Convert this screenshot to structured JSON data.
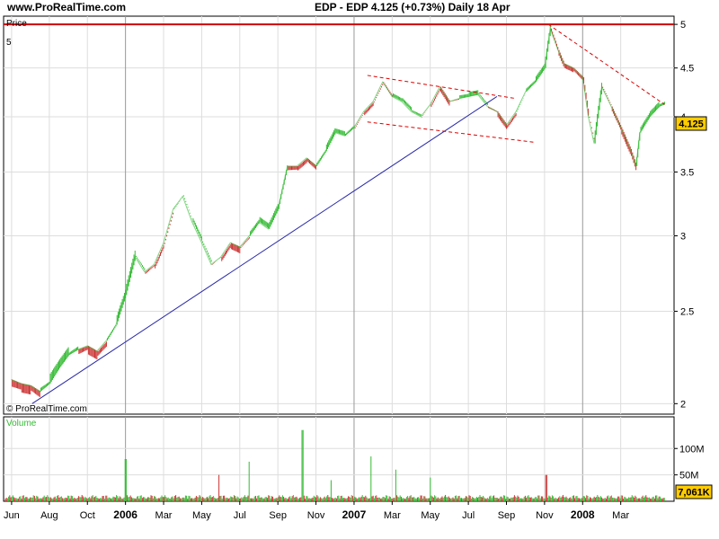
{
  "header": {
    "site": "www.ProRealTime.com",
    "title": "EDP - EDP    4.125 (+0.73%)    Daily   18 Apr"
  },
  "chart_data": [
    {
      "type": "line",
      "title": "EDP - EDP",
      "ylabel": "Price",
      "y_scale": "log",
      "ylim": [
        1.95,
        5.1
      ],
      "y_ticks": [
        {
          "value": 2,
          "label": "2"
        },
        {
          "value": 2.5,
          "label": "2.5"
        },
        {
          "value": 3,
          "label": "3"
        },
        {
          "value": 3.5,
          "label": "3.5"
        },
        {
          "value": 4,
          "label": "4"
        },
        {
          "value": 4.5,
          "label": "4.5"
        },
        {
          "value": 5,
          "label": "5"
        }
      ],
      "x_labels": [
        {
          "t": 0.02,
          "label": "Jun",
          "year": false
        },
        {
          "t": 2.0,
          "label": "Aug",
          "year": false
        },
        {
          "t": 4.0,
          "label": "Oct",
          "year": false
        },
        {
          "t": 6.0,
          "label": "2006",
          "year": true
        },
        {
          "t": 8.0,
          "label": "Mar",
          "year": false
        },
        {
          "t": 10.0,
          "label": "May",
          "year": false
        },
        {
          "t": 12.0,
          "label": "Jul",
          "year": false
        },
        {
          "t": 14.0,
          "label": "Sep",
          "year": false
        },
        {
          "t": 16.0,
          "label": "Nov",
          "year": false
        },
        {
          "t": 18.0,
          "label": "2007",
          "year": true
        },
        {
          "t": 20.0,
          "label": "Mar",
          "year": false
        },
        {
          "t": 22.0,
          "label": "May",
          "year": false
        },
        {
          "t": 24.0,
          "label": "Jul",
          "year": false
        },
        {
          "t": 26.0,
          "label": "Sep",
          "year": false
        },
        {
          "t": 28.0,
          "label": "Nov",
          "year": false
        },
        {
          "t": 30.0,
          "label": "2008",
          "year": true
        },
        {
          "t": 32.0,
          "label": "Mar",
          "year": false
        }
      ],
      "year_separators": [
        6,
        18,
        30
      ],
      "x_note": "x values are months counted from the start of June 2005",
      "series": [
        {
          "points": [
            [
              0.0,
              2.12
            ],
            [
              0.5,
              2.1
            ],
            [
              1.0,
              2.09
            ],
            [
              1.5,
              2.06
            ],
            [
              2.0,
              2.1
            ],
            [
              2.5,
              2.18
            ],
            [
              3.0,
              2.25
            ],
            [
              3.5,
              2.28
            ],
            [
              4.0,
              2.3
            ],
            [
              4.5,
              2.27
            ],
            [
              5.0,
              2.33
            ],
            [
              5.5,
              2.42
            ],
            [
              6.0,
              2.6
            ],
            [
              6.5,
              2.85
            ],
            [
              7.0,
              2.75
            ],
            [
              7.5,
              2.8
            ],
            [
              8.0,
              2.95
            ],
            [
              8.5,
              3.2
            ],
            [
              9.0,
              3.3
            ],
            [
              9.5,
              3.1
            ],
            [
              10.0,
              2.95
            ],
            [
              10.5,
              2.8
            ],
            [
              11.0,
              2.85
            ],
            [
              11.5,
              2.95
            ],
            [
              12.0,
              2.92
            ],
            [
              12.5,
              3.0
            ],
            [
              13.0,
              3.1
            ],
            [
              13.5,
              3.05
            ],
            [
              14.0,
              3.2
            ],
            [
              14.5,
              3.55
            ],
            [
              15.0,
              3.55
            ],
            [
              15.5,
              3.62
            ],
            [
              16.0,
              3.55
            ],
            [
              16.5,
              3.68
            ],
            [
              17.0,
              3.85
            ],
            [
              17.5,
              3.82
            ],
            [
              18.0,
              3.9
            ],
            [
              18.5,
              4.05
            ],
            [
              19.0,
              4.15
            ],
            [
              19.5,
              4.35
            ],
            [
              20.0,
              4.2
            ],
            [
              20.5,
              4.15
            ],
            [
              21.0,
              4.05
            ],
            [
              21.5,
              4.0
            ],
            [
              22.0,
              4.12
            ],
            [
              22.5,
              4.3
            ],
            [
              23.0,
              4.15
            ],
            [
              23.5,
              4.18
            ],
            [
              24.0,
              4.2
            ],
            [
              24.5,
              4.22
            ],
            [
              25.0,
              4.1
            ],
            [
              25.5,
              4.05
            ],
            [
              26.0,
              3.92
            ],
            [
              26.5,
              4.05
            ],
            [
              27.0,
              4.25
            ],
            [
              27.5,
              4.35
            ],
            [
              28.0,
              4.5
            ],
            [
              28.3,
              4.95
            ],
            [
              28.7,
              4.7
            ],
            [
              29.0,
              4.55
            ],
            [
              29.5,
              4.5
            ],
            [
              30.0,
              4.4
            ],
            [
              30.3,
              4.0
            ],
            [
              30.6,
              3.75
            ],
            [
              31.0,
              4.3
            ],
            [
              31.5,
              4.1
            ],
            [
              32.0,
              3.9
            ],
            [
              32.5,
              3.7
            ],
            [
              32.8,
              3.55
            ],
            [
              33.0,
              3.85
            ],
            [
              33.5,
              4.0
            ],
            [
              34.0,
              4.1
            ],
            [
              34.3,
              4.125
            ]
          ]
        }
      ],
      "lines": [
        {
          "kind": "horizontal",
          "value": 5,
          "color": "#cc0000"
        },
        {
          "kind": "trend",
          "from": [
            1.1,
            2.0
          ],
          "to": [
            25.5,
            4.2
          ],
          "color": "#2a2aaa"
        },
        {
          "kind": "dashed",
          "from": [
            18.7,
            4.42
          ],
          "to": [
            26.5,
            4.18
          ],
          "color": "#dd0000"
        },
        {
          "kind": "dashed",
          "from": [
            18.7,
            3.95
          ],
          "to": [
            27.5,
            3.76
          ],
          "color": "#dd0000"
        },
        {
          "kind": "dashed",
          "from": [
            28.2,
            5.0
          ],
          "to": [
            34.3,
            4.12
          ],
          "color": "#dd0000"
        }
      ],
      "last_value_label": "4.125",
      "top_left_label": "5",
      "watermark": "© ProRealTime.com",
      "colors": {
        "up": "#33bb33",
        "down": "#cc3333",
        "grid": "#dddddd",
        "frame": "#000000"
      }
    },
    {
      "type": "bar",
      "ylabel": "Volume",
      "ylim": [
        0,
        160
      ],
      "y_ticks": [
        {
          "value": 50,
          "label": "50M"
        },
        {
          "value": 100,
          "label": "100M"
        }
      ],
      "last_value_label": "7,061K",
      "volume_spikes": [
        {
          "t": 6.0,
          "value": 80
        },
        {
          "t": 10.9,
          "value": 50
        },
        {
          "t": 12.5,
          "value": 75
        },
        {
          "t": 15.3,
          "value": 135
        },
        {
          "t": 16.8,
          "value": 40
        },
        {
          "t": 18.9,
          "value": 85
        },
        {
          "t": 20.2,
          "value": 60
        },
        {
          "t": 22.0,
          "value": 45
        },
        {
          "t": 28.1,
          "value": 50
        }
      ],
      "baseline_volume": 12
    }
  ]
}
